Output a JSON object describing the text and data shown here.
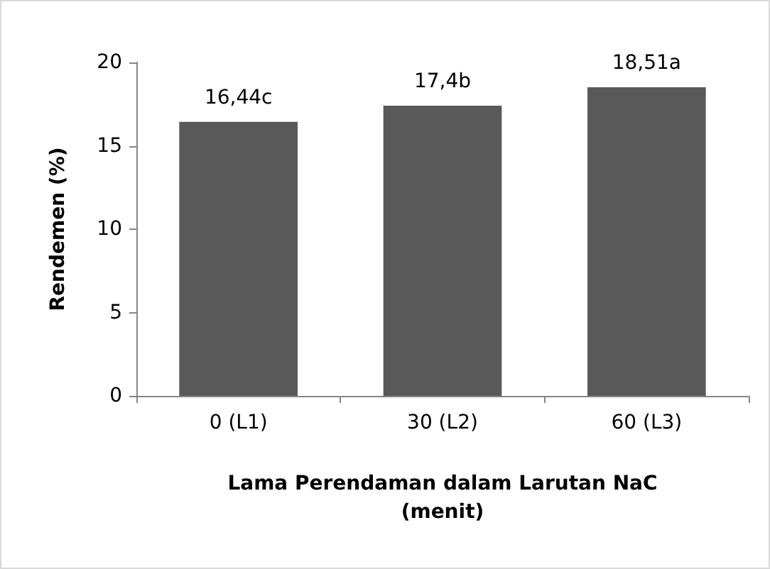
{
  "chart_data": {
    "type": "bar",
    "xlabel": "Lama Perendaman dalam Larutan NaC (menit)",
    "ylabel": "Rendemen (%)",
    "categories": [
      "0 (L1)",
      "30 (L2)",
      "60 (L3)"
    ],
    "values": [
      16.44,
      17.4,
      18.51
    ],
    "value_labels": [
      "16,44c",
      "17,4b",
      "18,51a"
    ],
    "color": "#595959",
    "ylim": [
      0,
      20
    ],
    "yticks": [
      0,
      5,
      10,
      15,
      20
    ],
    "grid": false
  }
}
